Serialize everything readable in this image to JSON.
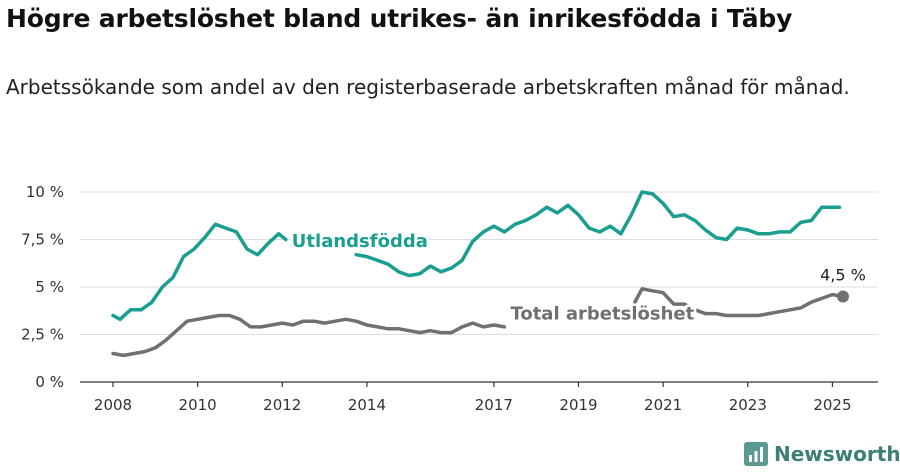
{
  "title": "Högre arbetslöshet bland utrikes- än inrikesfödda i Täby",
  "subtitle": "Arbetssökande som andel av den registerbaserade arbetskraften månad för månad.",
  "brand": {
    "name": "Newsworthy"
  },
  "colors": {
    "foreign": "#1a9e8f",
    "total": "#707070",
    "grid": "#dddddd",
    "axis": "#333333"
  },
  "chart_data": {
    "type": "line",
    "xlim": [
      "2008-01",
      "2025-12"
    ],
    "ylim": [
      0,
      10
    ],
    "y_ticks": [
      0,
      2.5,
      5,
      7.5,
      10
    ],
    "y_tick_labels": [
      "0 %",
      "2,5 %",
      "5 %",
      "7,5 %",
      "10 %"
    ],
    "x_ticks": [
      "2008-01",
      "2010-01",
      "2012-01",
      "2014-01",
      "2017-01",
      "2019-01",
      "2021-01",
      "2023-01",
      "2025-01"
    ],
    "x_tick_labels": [
      "2008",
      "2010",
      "2012",
      "2014",
      "2017",
      "2019",
      "2021",
      "2023",
      "2025"
    ],
    "grid": true,
    "series": [
      {
        "name": "Utlandsfödda",
        "color": "#1a9e8f",
        "points": [
          [
            "2008-01",
            3.5
          ],
          [
            "2008-03",
            3.3
          ],
          [
            "2008-06",
            3.8
          ],
          [
            "2008-09",
            3.8
          ],
          [
            "2008-12",
            4.2
          ],
          [
            "2009-03",
            5.0
          ],
          [
            "2009-06",
            5.5
          ],
          [
            "2009-09",
            6.6
          ],
          [
            "2009-12",
            7.0
          ],
          [
            "2010-03",
            7.6
          ],
          [
            "2010-06",
            8.3
          ],
          [
            "2010-09",
            8.1
          ],
          [
            "2010-12",
            7.9
          ],
          [
            "2011-03",
            7.0
          ],
          [
            "2011-06",
            6.7
          ],
          [
            "2011-09",
            7.3
          ],
          [
            "2011-12",
            7.8
          ],
          [
            "2012-02",
            7.5
          ],
          [
            "2012-05",
            null
          ],
          [
            "2013-10",
            6.7
          ],
          [
            "2014-01",
            6.6
          ],
          [
            "2014-04",
            6.4
          ],
          [
            "2014-07",
            6.2
          ],
          [
            "2014-10",
            5.8
          ],
          [
            "2015-01",
            5.6
          ],
          [
            "2015-04",
            5.7
          ],
          [
            "2015-07",
            6.1
          ],
          [
            "2015-10",
            5.8
          ],
          [
            "2016-01",
            6.0
          ],
          [
            "2016-04",
            6.4
          ],
          [
            "2016-07",
            7.4
          ],
          [
            "2016-10",
            7.9
          ],
          [
            "2017-01",
            8.2
          ],
          [
            "2017-04",
            7.9
          ],
          [
            "2017-07",
            8.3
          ],
          [
            "2017-10",
            8.5
          ],
          [
            "2018-01",
            8.8
          ],
          [
            "2018-04",
            9.2
          ],
          [
            "2018-07",
            8.9
          ],
          [
            "2018-10",
            9.3
          ],
          [
            "2019-01",
            8.8
          ],
          [
            "2019-04",
            8.1
          ],
          [
            "2019-07",
            7.9
          ],
          [
            "2019-10",
            8.2
          ],
          [
            "2020-01",
            7.8
          ],
          [
            "2020-04",
            8.8
          ],
          [
            "2020-07",
            10.0
          ],
          [
            "2020-10",
            9.9
          ],
          [
            "2021-01",
            9.4
          ],
          [
            "2021-04",
            8.7
          ],
          [
            "2021-07",
            8.8
          ],
          [
            "2021-10",
            8.5
          ],
          [
            "2022-01",
            8.0
          ],
          [
            "2022-04",
            7.6
          ],
          [
            "2022-07",
            7.5
          ],
          [
            "2022-10",
            8.1
          ],
          [
            "2023-01",
            8.0
          ],
          [
            "2023-04",
            7.8
          ],
          [
            "2023-07",
            7.8
          ],
          [
            "2023-10",
            7.9
          ],
          [
            "2024-01",
            7.9
          ],
          [
            "2024-04",
            8.4
          ],
          [
            "2024-07",
            8.5
          ],
          [
            "2024-10",
            9.2
          ],
          [
            "2025-03",
            9.2
          ]
        ]
      },
      {
        "name": "Total arbetslöshet",
        "color": "#707070",
        "points": [
          [
            "2008-01",
            1.5
          ],
          [
            "2008-04",
            1.4
          ],
          [
            "2008-07",
            1.5
          ],
          [
            "2008-10",
            1.6
          ],
          [
            "2009-01",
            1.8
          ],
          [
            "2009-04",
            2.2
          ],
          [
            "2009-07",
            2.7
          ],
          [
            "2009-10",
            3.2
          ],
          [
            "2010-01",
            3.3
          ],
          [
            "2010-04",
            3.4
          ],
          [
            "2010-07",
            3.5
          ],
          [
            "2010-10",
            3.5
          ],
          [
            "2011-01",
            3.3
          ],
          [
            "2011-04",
            2.9
          ],
          [
            "2011-07",
            2.9
          ],
          [
            "2011-10",
            3.0
          ],
          [
            "2012-01",
            3.1
          ],
          [
            "2012-04",
            3.0
          ],
          [
            "2012-07",
            3.2
          ],
          [
            "2012-10",
            3.2
          ],
          [
            "2013-01",
            3.1
          ],
          [
            "2013-04",
            3.2
          ],
          [
            "2013-07",
            3.3
          ],
          [
            "2013-10",
            3.2
          ],
          [
            "2014-01",
            3.0
          ],
          [
            "2014-04",
            2.9
          ],
          [
            "2014-07",
            2.8
          ],
          [
            "2014-10",
            2.8
          ],
          [
            "2015-01",
            2.7
          ],
          [
            "2015-04",
            2.6
          ],
          [
            "2015-07",
            2.7
          ],
          [
            "2015-10",
            2.6
          ],
          [
            "2016-01",
            2.6
          ],
          [
            "2016-04",
            2.9
          ],
          [
            "2016-07",
            3.1
          ],
          [
            "2016-10",
            2.9
          ],
          [
            "2017-01",
            3.0
          ],
          [
            "2017-04",
            2.9
          ],
          [
            "2017-05",
            null
          ],
          [
            "2020-05",
            4.2
          ],
          [
            "2020-07",
            4.9
          ],
          [
            "2020-10",
            4.8
          ],
          [
            "2021-01",
            4.7
          ],
          [
            "2021-04",
            4.1
          ],
          [
            "2021-07",
            4.1
          ],
          [
            "2021-10",
            3.8
          ],
          [
            "2022-01",
            3.6
          ],
          [
            "2022-04",
            3.6
          ],
          [
            "2022-07",
            3.5
          ],
          [
            "2022-10",
            3.5
          ],
          [
            "2023-01",
            3.5
          ],
          [
            "2023-04",
            3.5
          ],
          [
            "2023-07",
            3.6
          ],
          [
            "2023-10",
            3.7
          ],
          [
            "2024-01",
            3.8
          ],
          [
            "2024-04",
            3.9
          ],
          [
            "2024-07",
            4.2
          ],
          [
            "2024-10",
            4.4
          ],
          [
            "2025-01",
            4.6
          ],
          [
            "2025-04",
            4.5
          ]
        ]
      }
    ],
    "annotations": [
      {
        "text": "Utlandsfödda",
        "series": "Utlandsfödda",
        "at": [
          "2012-02",
          7.1
        ]
      },
      {
        "text": "Total arbetslöshet",
        "series": "Total arbetslöshet",
        "at": [
          "2017-04",
          3.3
        ]
      },
      {
        "text": "4,5 %",
        "series": "Total arbetslöshet",
        "at": [
          "2025-04",
          4.5
        ],
        "end_marker": true
      }
    ]
  }
}
